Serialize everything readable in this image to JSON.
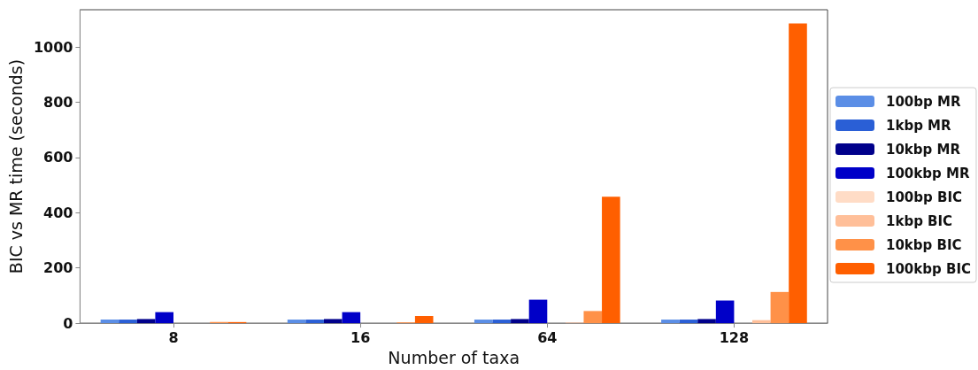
{
  "chart_data": {
    "type": "bar",
    "xlabel": "Number of taxa",
    "ylabel": "BIC vs MR time (seconds)",
    "categories": [
      "8",
      "16",
      "64",
      "128"
    ],
    "series": [
      {
        "name": "100bp MR",
        "color": "#5b8ee6",
        "values": [
          13,
          13,
          13,
          13
        ]
      },
      {
        "name": "1kbp MR",
        "color": "#2a5fd6",
        "values": [
          13,
          13,
          13,
          13
        ]
      },
      {
        "name": "10kbp MR",
        "color": "#00008b",
        "values": [
          15,
          15,
          15,
          15
        ]
      },
      {
        "name": "100kbp MR",
        "color": "#0000c8",
        "values": [
          40,
          40,
          85,
          82
        ]
      },
      {
        "name": "100bp BIC",
        "color": "#ffdcc6",
        "values": [
          0,
          0,
          0,
          0
        ]
      },
      {
        "name": "1kbp BIC",
        "color": "#ffbf99",
        "values": [
          0,
          0,
          2,
          11
        ]
      },
      {
        "name": "10kbp BIC",
        "color": "#ff9148",
        "values": [
          4,
          3,
          44,
          113
        ]
      },
      {
        "name": "100kbp BIC",
        "color": "#ff5f00",
        "values": [
          4,
          26,
          458,
          1085
        ]
      }
    ],
    "ylim": [
      0,
      1135
    ],
    "yticks": [
      0,
      200,
      400,
      600,
      800,
      1000
    ],
    "grid": false,
    "legend": "right"
  }
}
